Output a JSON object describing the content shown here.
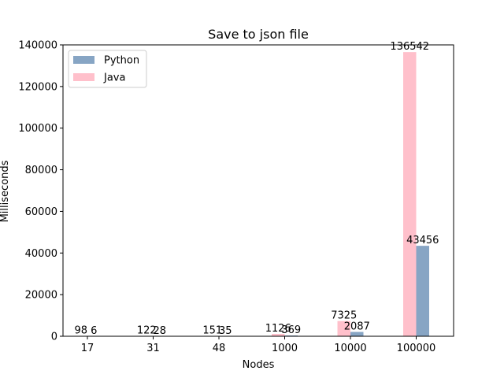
{
  "chart_data": {
    "type": "bar",
    "title": "Save to json file",
    "xlabel": "Nodes",
    "ylabel": "Milliseconds",
    "categories": [
      "17",
      "31",
      "48",
      "1000",
      "10000",
      "100000"
    ],
    "series": [
      {
        "name": "Python",
        "values": [
          6,
          28,
          35,
          369,
          2087,
          43456
        ],
        "color": "#87a5c4"
      },
      {
        "name": "Java",
        "values": [
          98,
          122,
          151,
          1126,
          7325,
          136542
        ],
        "color": "#ffc0cb"
      }
    ],
    "ylim": [
      0,
      140000
    ],
    "yticks": [
      0,
      20000,
      40000,
      60000,
      80000,
      100000,
      120000,
      140000
    ],
    "grid": false,
    "legend_position": "top-left"
  }
}
